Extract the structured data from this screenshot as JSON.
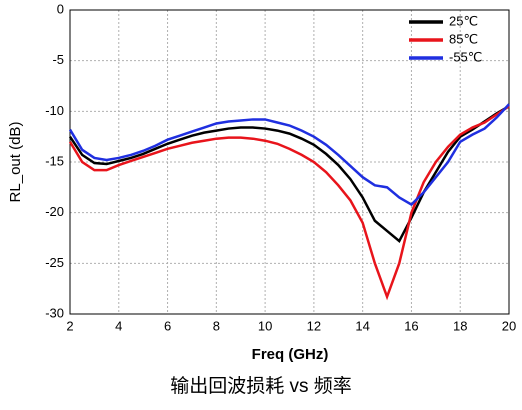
{
  "chart_data": {
    "type": "line",
    "caption": "输出回波损耗 vs 频率",
    "x_label": "Freq (GHz)",
    "y_label": "RL_out (dB)",
    "x": [
      2,
      2.5,
      3,
      3.5,
      4,
      4.5,
      5,
      5.5,
      6,
      6.5,
      7,
      7.5,
      8,
      8.5,
      9,
      9.5,
      10,
      10.5,
      11,
      11.5,
      12,
      12.5,
      13,
      13.5,
      14,
      14.5,
      15,
      15.5,
      16,
      16.5,
      17,
      17.5,
      18,
      18.5,
      19,
      19.5,
      20
    ],
    "series": [
      {
        "name": "25℃",
        "color": "#000000",
        "values": [
          -12.5,
          -14.3,
          -15.1,
          -15.2,
          -14.9,
          -14.6,
          -14.2,
          -13.7,
          -13.2,
          -12.8,
          -12.4,
          -12.1,
          -11.9,
          -11.7,
          -11.6,
          -11.6,
          -11.7,
          -11.9,
          -12.2,
          -12.7,
          -13.3,
          -14.2,
          -15.3,
          -16.7,
          -18.5,
          -20.8,
          -21.8,
          -22.8,
          -20.5,
          -18,
          -16,
          -14,
          -12.5,
          -11.8,
          -11,
          -10.2,
          -9.5
        ]
      },
      {
        "name": "85℃",
        "color": "#e8141b",
        "values": [
          -13,
          -15,
          -15.8,
          -15.8,
          -15.3,
          -14.9,
          -14.5,
          -14.1,
          -13.7,
          -13.4,
          -13.1,
          -12.9,
          -12.7,
          -12.6,
          -12.6,
          -12.7,
          -12.9,
          -13.2,
          -13.7,
          -14.3,
          -15,
          -16,
          -17.3,
          -18.8,
          -21,
          -25,
          -28.3,
          -25,
          -20,
          -17,
          -15,
          -13.5,
          -12.3,
          -11.6,
          -11.1,
          -10.3,
          -9.5
        ]
      },
      {
        "name": "-55℃",
        "color": "#1f2fe0",
        "values": [
          -11.8,
          -13.8,
          -14.6,
          -14.8,
          -14.6,
          -14.3,
          -13.9,
          -13.4,
          -12.8,
          -12.4,
          -12,
          -11.6,
          -11.2,
          -11,
          -10.9,
          -10.8,
          -10.8,
          -11.1,
          -11.4,
          -11.9,
          -12.5,
          -13.3,
          -14.3,
          -15.4,
          -16.5,
          -17.3,
          -17.5,
          -18.5,
          -19.2,
          -18,
          -16.5,
          -15,
          -13,
          -12.3,
          -11.7,
          -10.6,
          -9.3
        ]
      }
    ],
    "xlim": [
      2,
      20
    ],
    "xticks": [
      2,
      4,
      6,
      8,
      10,
      12,
      14,
      16,
      18,
      20
    ],
    "ylim": [
      -30,
      0
    ],
    "yticks": [
      -30,
      -25,
      -20,
      -15,
      -10,
      -5,
      0
    ],
    "grid": true,
    "legend": "upper right"
  }
}
